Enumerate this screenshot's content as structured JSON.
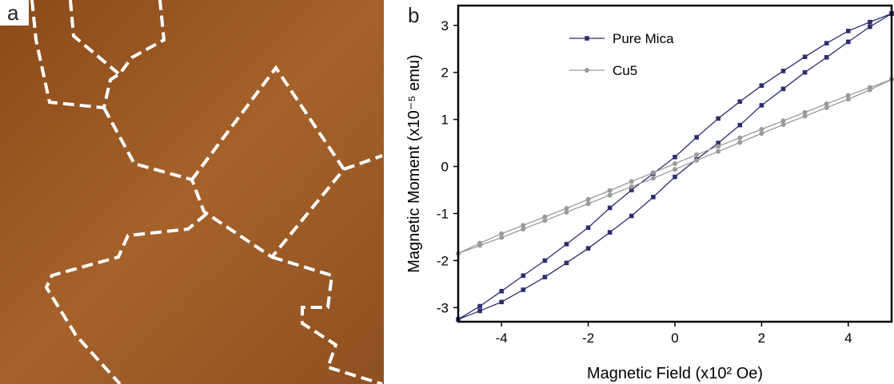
{
  "image_panel": {
    "label": "a"
  },
  "chart_data": {
    "type": "line",
    "panel_label": "b",
    "xlabel": "Magnetic Field (x10² Oe)",
    "ylabel": "Magnetic Moment (x10⁻⁵ emu)",
    "xlim": [
      -5,
      5
    ],
    "ylim": [
      -3.3,
      3.42
    ],
    "xticks": [
      -4,
      -2,
      0,
      2,
      4
    ],
    "yticks": [
      -3,
      -2,
      -1,
      0,
      1,
      2,
      3
    ],
    "legend": "upper-left",
    "series": [
      {
        "name": "Pure Mica",
        "color": "#2e2e6e",
        "marker": "square",
        "x": [
          5,
          4.5,
          4,
          3.5,
          3,
          2.5,
          2,
          1.5,
          1,
          0.5,
          0,
          -0.5,
          -1,
          -1.5,
          -2,
          -2.5,
          -3,
          -3.5,
          -4,
          -4.5,
          -5,
          -4.5,
          -4,
          -3.5,
          -3,
          -2.5,
          -2,
          -1.5,
          -1,
          -0.5,
          0,
          0.5,
          1,
          1.5,
          2,
          2.5,
          3,
          3.5,
          4,
          4.5,
          5
        ],
        "values": [
          3.25,
          3.07,
          2.88,
          2.62,
          2.33,
          2.03,
          1.72,
          1.38,
          1.02,
          0.62,
          0.2,
          -0.15,
          -0.5,
          -0.88,
          -1.3,
          -1.65,
          -2.0,
          -2.32,
          -2.65,
          -2.97,
          -3.25,
          -3.07,
          -2.88,
          -2.62,
          -2.35,
          -2.05,
          -1.74,
          -1.4,
          -1.05,
          -0.65,
          -0.22,
          0.15,
          0.5,
          0.88,
          1.3,
          1.65,
          2.0,
          2.32,
          2.65,
          2.97,
          3.25
        ]
      },
      {
        "name": "Cu5",
        "color": "#9a9a9a",
        "marker": "circle",
        "x": [
          5,
          4.5,
          4,
          3.5,
          3,
          2.5,
          2,
          1.5,
          1,
          0.5,
          0,
          -0.5,
          -1,
          -1.5,
          -2,
          -2.5,
          -3,
          -3.5,
          -4,
          -4.5,
          -5,
          -4.5,
          -4,
          -3.5,
          -3,
          -2.5,
          -2,
          -1.5,
          -1,
          -0.5,
          0,
          0.5,
          1,
          1.5,
          2,
          2.5,
          3,
          3.5,
          4,
          4.5,
          5
        ],
        "values": [
          1.85,
          1.68,
          1.51,
          1.33,
          1.15,
          0.97,
          0.79,
          0.61,
          0.43,
          0.25,
          0.06,
          -0.13,
          -0.32,
          -0.51,
          -0.7,
          -0.89,
          -1.07,
          -1.25,
          -1.43,
          -1.63,
          -1.85,
          -1.68,
          -1.51,
          -1.33,
          -1.15,
          -0.97,
          -0.79,
          -0.61,
          -0.43,
          -0.25,
          -0.06,
          0.13,
          0.32,
          0.51,
          0.7,
          0.89,
          1.07,
          1.25,
          1.43,
          1.63,
          1.85
        ]
      }
    ]
  }
}
